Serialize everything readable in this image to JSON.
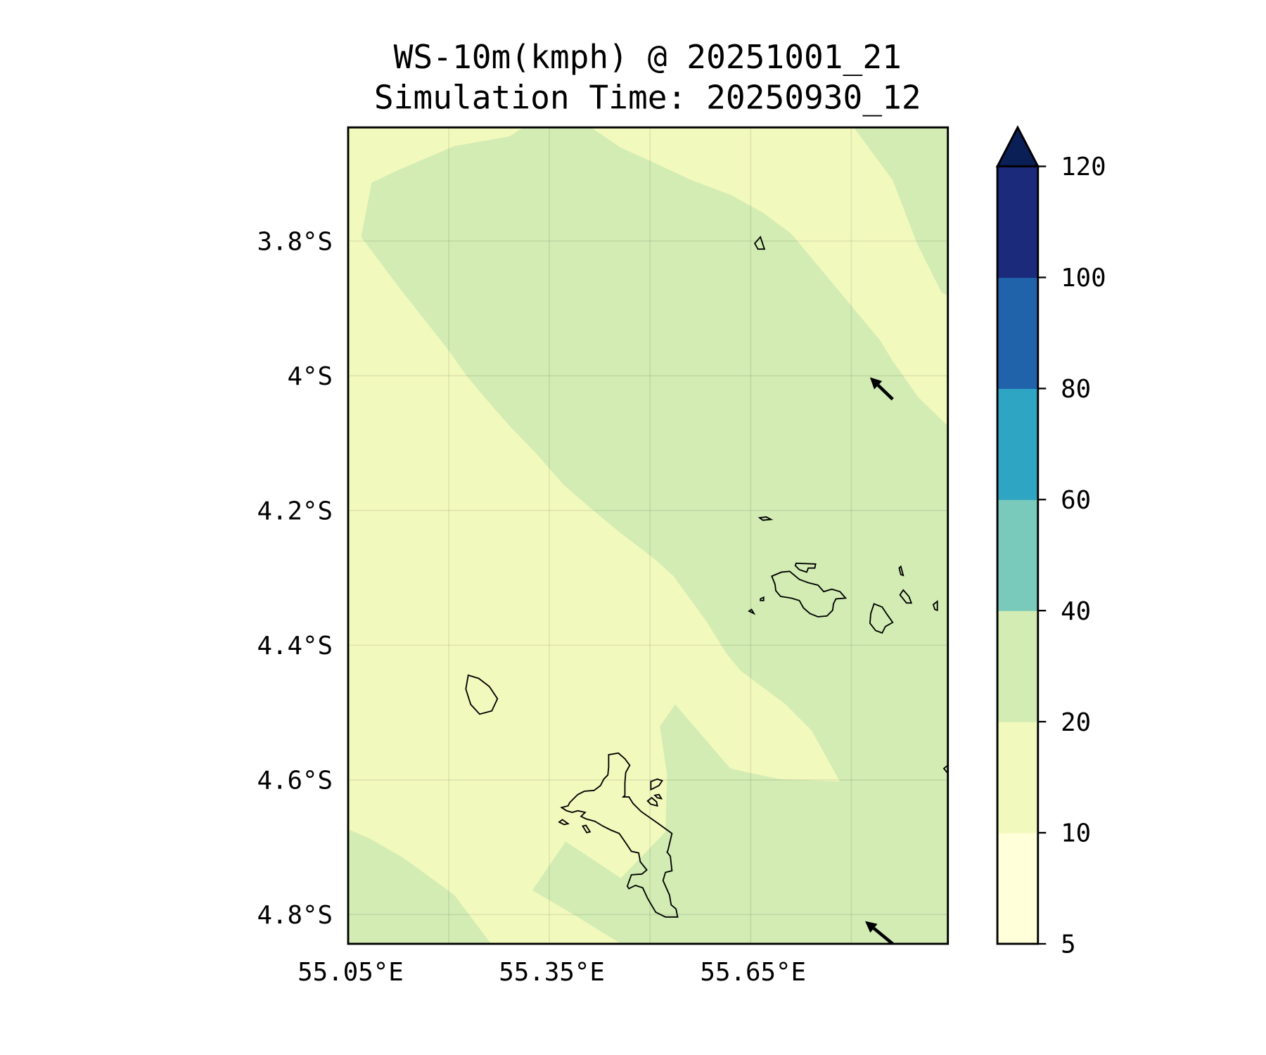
{
  "chart_data": {
    "type": "heatmap",
    "title": "WS-10m(kmph) @ 20251001_21",
    "subtitle": "Simulation Time: 20250930_12",
    "x_ticks": [
      "55.05°E",
      "55.35°E",
      "55.65°E"
    ],
    "y_ticks": [
      "3.8°S",
      "4°S",
      "4.2°S",
      "4.4°S",
      "4.6°S",
      "4.8°S"
    ],
    "colorbar": {
      "levels": [
        5,
        10,
        20,
        40,
        60,
        80,
        100,
        120
      ],
      "tick_labels": [
        "5",
        "10",
        "20",
        "40",
        "60",
        "80",
        "100",
        "120"
      ],
      "colors": [
        "#ffffd9",
        "#f2f9bd",
        "#d2ecb4",
        "#79cabb",
        "#2fa5c4",
        "#2163aa",
        "#1b2a7b"
      ],
      "extend_color": "#0b1f57",
      "extend": "max"
    },
    "fill_regions": [
      {
        "range": "10-20",
        "color": "#f2f9bd"
      },
      {
        "range": "20-40",
        "color": "#d2ecb4"
      }
    ],
    "wind_vectors": [
      {
        "lon": 55.82,
        "lat": -4.02,
        "direction": "northwest"
      },
      {
        "lon": 55.82,
        "lat": -4.85,
        "direction": "northwest"
      }
    ],
    "grid": true
  }
}
